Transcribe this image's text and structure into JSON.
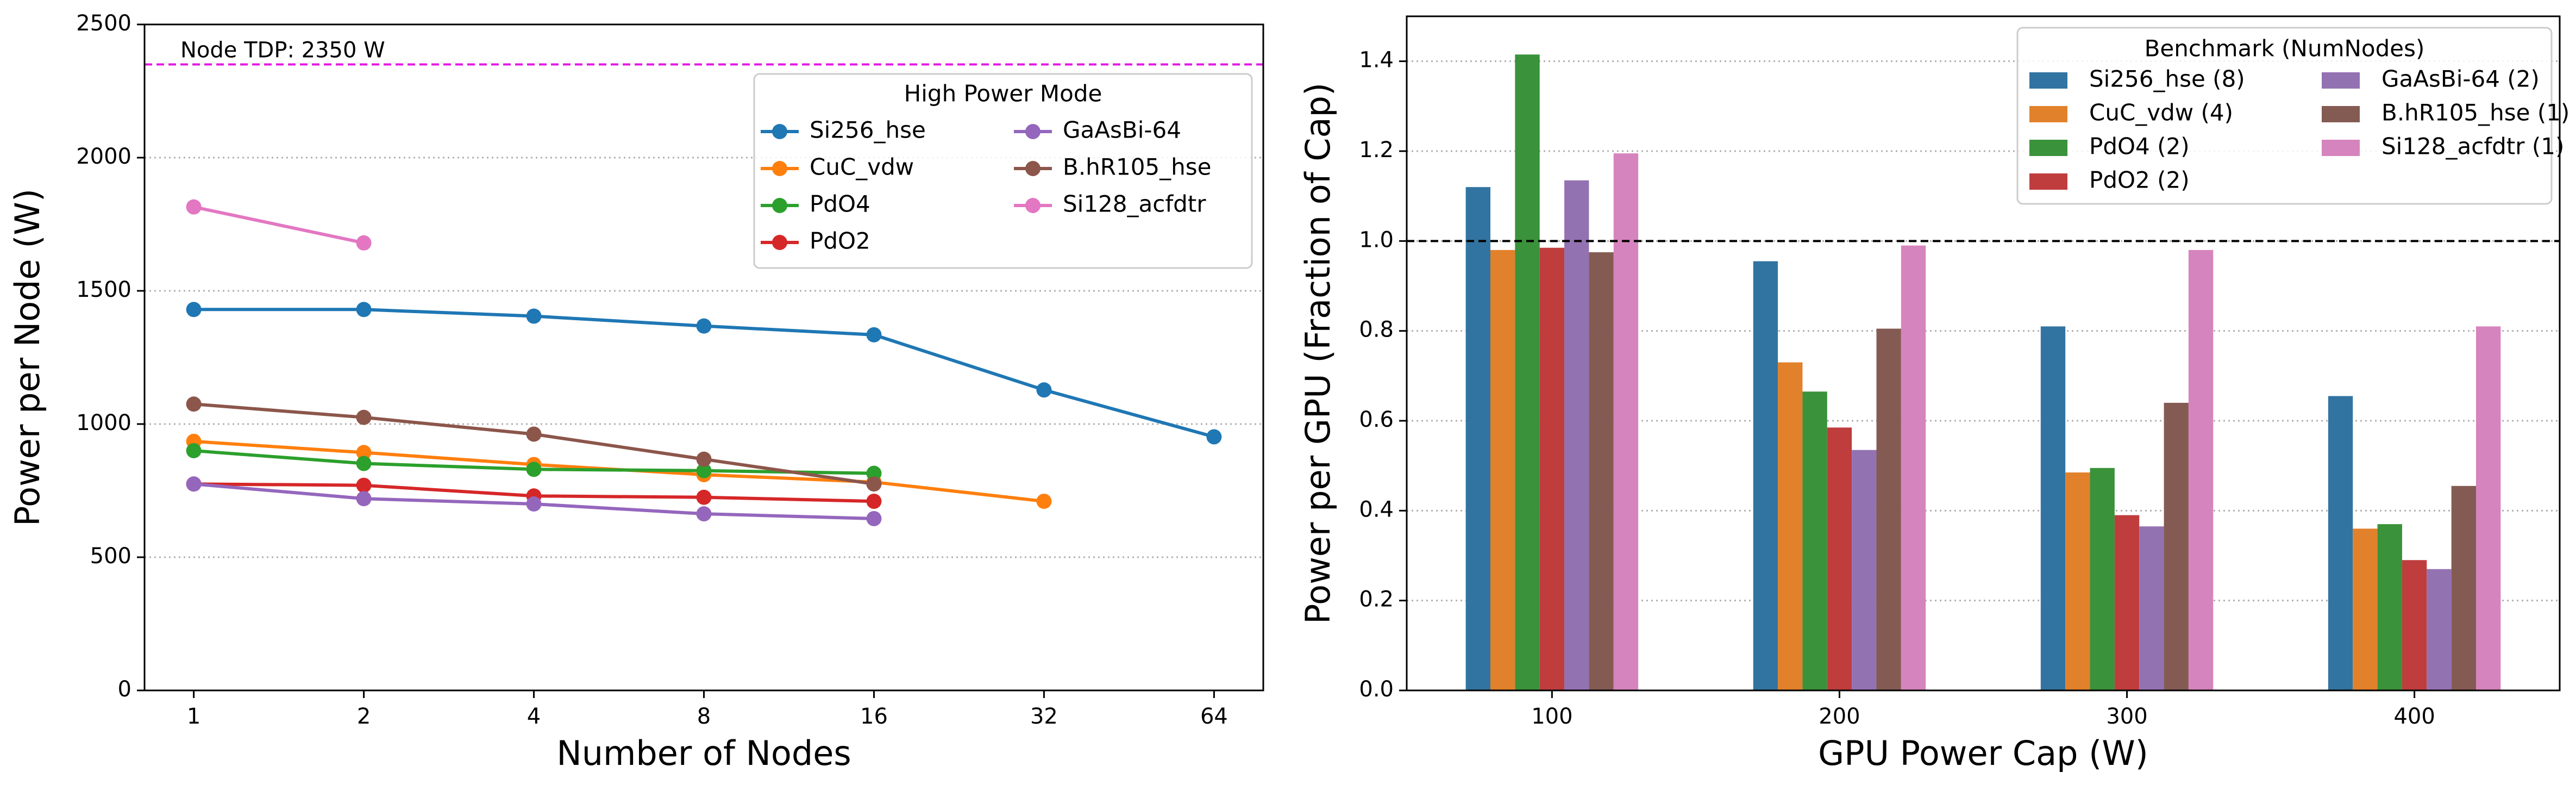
{
  "chart_data": [
    {
      "type": "line",
      "xlabel": "Number of Nodes",
      "ylabel": "Power per Node (W)",
      "categories": [
        "1",
        "2",
        "4",
        "8",
        "16",
        "32",
        "64"
      ],
      "ylim": [
        0,
        2500
      ],
      "yticks": [
        0,
        500,
        1000,
        1500,
        2000,
        2500
      ],
      "grid": true,
      "hlines": [
        {
          "value": 2350,
          "label": "Node TDP: 2350 W",
          "color": "#e31ae3"
        }
      ],
      "legend_title": "High Power Mode",
      "legend": "upper right",
      "series": [
        {
          "name": "Si256_hse",
          "color": "#1f77b4",
          "values": [
            1430,
            1430,
            1405,
            1368,
            1335,
            1128,
            952
          ]
        },
        {
          "name": "CuC_vdw",
          "color": "#ff7f0e",
          "values": [
            935,
            893,
            848,
            810,
            782,
            710,
            null
          ]
        },
        {
          "name": "PdO4",
          "color": "#2ca02c",
          "values": [
            900,
            852,
            830,
            825,
            815,
            null,
            null
          ]
        },
        {
          "name": "PdO2",
          "color": "#d62728",
          "values": [
            775,
            770,
            730,
            725,
            710,
            null,
            null
          ]
        },
        {
          "name": "GaAsBi-64",
          "color": "#9467bd",
          "values": [
            775,
            720,
            700,
            663,
            645,
            null,
            null
          ]
        },
        {
          "name": "B.hR105_hse",
          "color": "#8c564b",
          "values": [
            1075,
            1025,
            962,
            868,
            775,
            null,
            null
          ]
        },
        {
          "name": "Si128_acfdtr",
          "color": "#e377c2",
          "values": [
            1815,
            1680,
            null,
            null,
            null,
            null,
            null
          ]
        }
      ]
    },
    {
      "type": "bar",
      "xlabel": "GPU Power Cap (W)",
      "ylabel": "Power per GPU (Fraction of Cap)",
      "categories": [
        "100",
        "200",
        "300",
        "400"
      ],
      "ylim": [
        0,
        1.5
      ],
      "yticks": [
        {
          "value": 0,
          "label": "0.0"
        },
        0.2,
        0.4,
        0.6,
        0.8,
        {
          "value": 1,
          "label": "1.0"
        },
        1.2,
        1.4
      ],
      "grid": true,
      "hlines": [
        {
          "value": 1,
          "color": "#000000"
        }
      ],
      "legend_title": "Benchmark (NumNodes)",
      "legend": "upper right",
      "series": [
        {
          "name": "Si256_hse (8)",
          "color": "#3274a1",
          "values": [
            1.12,
            0.955,
            0.81,
            0.655
          ]
        },
        {
          "name": "CuC_vdw (4)",
          "color": "#e1812c",
          "values": [
            0.98,
            0.73,
            0.485,
            0.36
          ]
        },
        {
          "name": "PdO4 (2)",
          "color": "#3a923a",
          "values": [
            1.415,
            0.665,
            0.495,
            0.37
          ]
        },
        {
          "name": "PdO2 (2)",
          "color": "#c03d3e",
          "values": [
            0.985,
            0.585,
            0.39,
            0.29
          ]
        },
        {
          "name": "GaAsBi-64 (2)",
          "color": "#9372b2",
          "values": [
            1.135,
            0.535,
            0.365,
            0.27
          ]
        },
        {
          "name": "B.hR105_hse (1)",
          "color": "#845b53",
          "values": [
            0.975,
            0.805,
            0.64,
            0.455
          ]
        },
        {
          "name": "Si128_acfdtr (1)",
          "color": "#d684bd",
          "values": [
            1.195,
            0.99,
            0.98,
            0.81
          ]
        }
      ]
    }
  ]
}
